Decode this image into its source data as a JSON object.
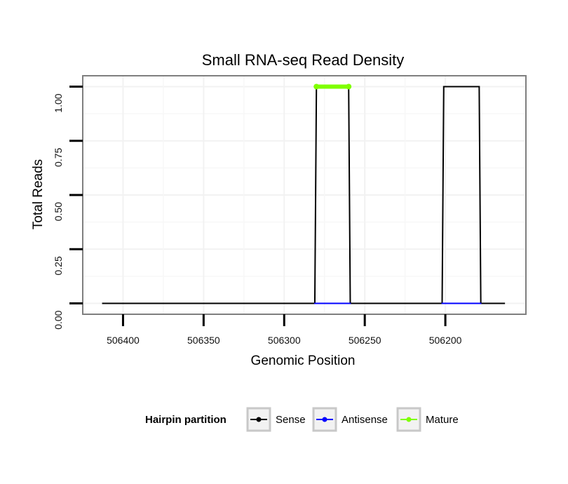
{
  "chart_data": {
    "type": "line",
    "title": "Small RNA-seq Read Density",
    "xlabel": "Genomic Position",
    "ylabel": "Total Reads",
    "x_reversed": true,
    "xlim": [
      506425,
      506150
    ],
    "ylim": [
      -0.05,
      1.05
    ],
    "x_ticks": [
      506400,
      506350,
      506300,
      506250,
      506200
    ],
    "x_tick_labels": [
      "506400",
      "506350",
      "506300",
      "506250",
      "506200"
    ],
    "y_ticks": [
      0,
      0.25,
      0.5,
      0.75,
      1
    ],
    "y_tick_labels": [
      "0.00",
      "0.25",
      "0.50",
      "0.75",
      "1.00"
    ],
    "grid": true,
    "series": [
      {
        "name": "Sense",
        "color": "#000000",
        "x": [
          506413,
          506281,
          506280,
          506260,
          506259,
          506202,
          506201,
          506179,
          506178,
          506163
        ],
        "y": [
          0,
          0,
          1,
          1,
          0,
          0,
          1,
          1,
          0,
          0
        ]
      },
      {
        "name": "Antisense",
        "color": "#0000ff",
        "segments": [
          {
            "x": [
              506281,
              506259
            ],
            "y": [
              0,
              0
            ]
          },
          {
            "x": [
              506202,
              506178
            ],
            "y": [
              0,
              0
            ]
          }
        ]
      },
      {
        "name": "Mature",
        "color": "#7fff00",
        "segments": [
          {
            "x": [
              506280,
              506260
            ],
            "y": [
              1,
              1
            ]
          }
        ]
      }
    ],
    "legend": {
      "title": "Hairpin partition",
      "position": "bottom",
      "entries": [
        "Sense",
        "Antisense",
        "Mature"
      ]
    }
  }
}
